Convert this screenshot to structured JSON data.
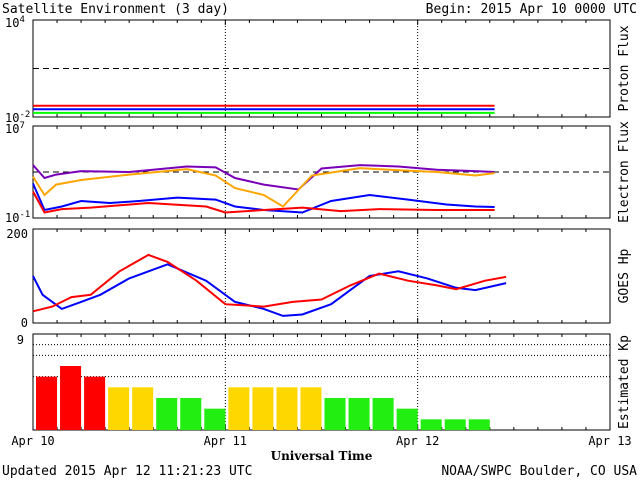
{
  "header": {
    "title": "Satellite Environment (3 day)",
    "begin": "Begin:  2015 Apr 10 0000 UTC"
  },
  "footer": {
    "updated": "Updated 2015 Apr 12 11:21:23 UTC",
    "credit": "NOAA/SWPC Boulder, CO USA"
  },
  "colors": {
    "red": "#ff0000",
    "blue": "#0000ff",
    "green": "#00ff00",
    "purple": "#7a00b8",
    "orange": "#ffa500",
    "kp_red": "#ff0000",
    "kp_yellow": "#ffd700",
    "kp_green": "#22ee11"
  },
  "chart_data": [
    {
      "type": "line",
      "ylabel": "Proton Flux",
      "yscale": "log",
      "ylim": [
        0.01,
        10000
      ],
      "yticks": [
        {
          "base": "10",
          "exp": "4"
        },
        {
          "base": "10",
          "exp": "-2"
        }
      ],
      "threshold": 10,
      "xlim_days": [
        0,
        3
      ],
      "series": [
        {
          "color": "red",
          "values": [
            [
              0,
              0.05
            ],
            [
              2.4,
              0.05
            ]
          ]
        },
        {
          "color": "blue",
          "values": [
            [
              0,
              0.03
            ],
            [
              2.4,
              0.03
            ]
          ]
        },
        {
          "color": "green",
          "values": [
            [
              0,
              0.018
            ],
            [
              2.4,
              0.018
            ]
          ]
        }
      ]
    },
    {
      "type": "line",
      "ylabel": "Electron Flux",
      "yscale": "log",
      "ylim": [
        0.1,
        10000000
      ],
      "yticks": [
        {
          "base": "10",
          "exp": "7"
        },
        {
          "base": "10",
          "exp": "-1"
        }
      ],
      "threshold": 1000,
      "xlim_days": [
        0,
        3
      ],
      "series": [
        {
          "color": "purple",
          "values": [
            [
              0,
              4000
            ],
            [
              0.06,
              300
            ],
            [
              0.12,
              600
            ],
            [
              0.25,
              1200
            ],
            [
              0.5,
              1000
            ],
            [
              0.8,
              3000
            ],
            [
              0.95,
              2500
            ],
            [
              1.05,
              300
            ],
            [
              1.2,
              80
            ],
            [
              1.38,
              30
            ],
            [
              1.5,
              2000
            ],
            [
              1.7,
              4000
            ],
            [
              1.9,
              3000
            ],
            [
              2.1,
              1600
            ],
            [
              2.3,
              1200
            ],
            [
              2.4,
              1000
            ]
          ]
        },
        {
          "color": "orange",
          "values": [
            [
              0,
              400
            ],
            [
              0.06,
              10
            ],
            [
              0.12,
              80
            ],
            [
              0.25,
              200
            ],
            [
              0.5,
              600
            ],
            [
              0.8,
              1800
            ],
            [
              0.95,
              500
            ],
            [
              1.05,
              40
            ],
            [
              1.2,
              10
            ],
            [
              1.3,
              1
            ],
            [
              1.45,
              500
            ],
            [
              1.7,
              2200
            ],
            [
              1.9,
              1400
            ],
            [
              2.1,
              1000
            ],
            [
              2.3,
              500
            ],
            [
              2.4,
              800
            ]
          ]
        },
        {
          "color": "blue",
          "values": [
            [
              0,
              100
            ],
            [
              0.06,
              0.5
            ],
            [
              0.15,
              1
            ],
            [
              0.25,
              3
            ],
            [
              0.4,
              2
            ],
            [
              0.55,
              3
            ],
            [
              0.75,
              6
            ],
            [
              0.95,
              4
            ],
            [
              1.05,
              1
            ],
            [
              1.2,
              0.5
            ],
            [
              1.4,
              0.3
            ],
            [
              1.55,
              3
            ],
            [
              1.75,
              10
            ],
            [
              1.95,
              4
            ],
            [
              2.15,
              1.5
            ],
            [
              2.3,
              1
            ],
            [
              2.4,
              0.9
            ]
          ]
        },
        {
          "color": "red",
          "values": [
            [
              0,
              20
            ],
            [
              0.06,
              0.3
            ],
            [
              0.15,
              0.6
            ],
            [
              0.3,
              0.8
            ],
            [
              0.6,
              2
            ],
            [
              0.9,
              1
            ],
            [
              1.0,
              0.3
            ],
            [
              1.2,
              0.5
            ],
            [
              1.4,
              0.8
            ],
            [
              1.6,
              0.4
            ],
            [
              1.8,
              0.6
            ],
            [
              2.1,
              0.5
            ],
            [
              2.4,
              0.5
            ]
          ]
        }
      ]
    },
    {
      "type": "line",
      "ylabel": "GOES Hp",
      "ylim": [
        0,
        200
      ],
      "yticks": [
        "200",
        "0"
      ],
      "xlim_days": [
        0,
        3
      ],
      "series": [
        {
          "color": "blue",
          "values": [
            [
              0,
              100
            ],
            [
              0.05,
              60
            ],
            [
              0.15,
              30
            ],
            [
              0.25,
              45
            ],
            [
              0.35,
              60
            ],
            [
              0.5,
              95
            ],
            [
              0.7,
              125
            ],
            [
              0.9,
              90
            ],
            [
              1.05,
              45
            ],
            [
              1.2,
              30
            ],
            [
              1.3,
              15
            ],
            [
              1.4,
              18
            ],
            [
              1.55,
              40
            ],
            [
              1.65,
              70
            ],
            [
              1.75,
              100
            ],
            [
              1.9,
              110
            ],
            [
              2.05,
              95
            ],
            [
              2.2,
              75
            ],
            [
              2.3,
              70
            ],
            [
              2.46,
              85
            ]
          ]
        },
        {
          "color": "red",
          "values": [
            [
              0,
              25
            ],
            [
              0.1,
              35
            ],
            [
              0.2,
              55
            ],
            [
              0.3,
              60
            ],
            [
              0.45,
              110
            ],
            [
              0.6,
              145
            ],
            [
              0.7,
              130
            ],
            [
              0.85,
              90
            ],
            [
              1.0,
              40
            ],
            [
              1.2,
              35
            ],
            [
              1.35,
              45
            ],
            [
              1.5,
              50
            ],
            [
              1.65,
              80
            ],
            [
              1.8,
              105
            ],
            [
              1.95,
              90
            ],
            [
              2.1,
              80
            ],
            [
              2.2,
              72
            ],
            [
              2.35,
              90
            ],
            [
              2.46,
              98
            ]
          ]
        }
      ]
    },
    {
      "type": "bar",
      "ylabel": "Estimated Kp",
      "ylim": [
        0,
        9
      ],
      "yticks": [
        "9"
      ],
      "xlim_days": [
        0,
        3
      ],
      "interval_hours": 3,
      "values": [
        5,
        6,
        5,
        4,
        4,
        3,
        3,
        2,
        4,
        4,
        4,
        4,
        3,
        3,
        3,
        2,
        1,
        1,
        1
      ],
      "bar_colors": [
        "kp_red",
        "kp_red",
        "kp_red",
        "kp_yellow",
        "kp_yellow",
        "kp_green",
        "kp_green",
        "kp_green",
        "kp_yellow",
        "kp_yellow",
        "kp_yellow",
        "kp_yellow",
        "kp_green",
        "kp_green",
        "kp_green",
        "kp_green",
        "kp_green",
        "kp_green",
        "kp_green"
      ]
    }
  ],
  "x_axis": {
    "labels": [
      "Apr 10",
      "Apr 11",
      "Apr 12",
      "Apr 13"
    ],
    "title": "Universal Time"
  }
}
